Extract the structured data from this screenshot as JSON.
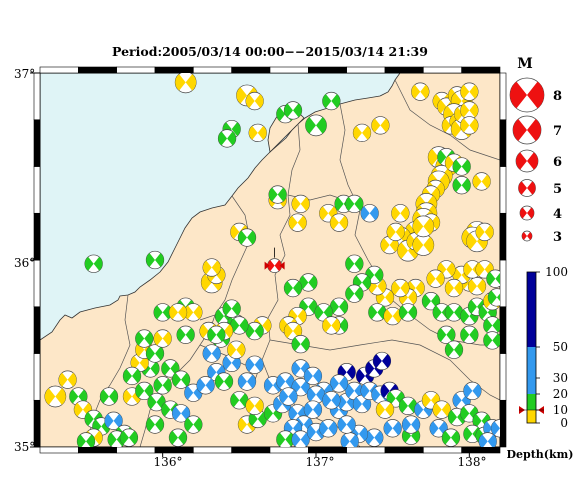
{
  "title": "Period:2005/03/14 00:00−−2015/03/14 21:39",
  "axes": {
    "lat_labels": [
      "37°",
      "36°",
      "35°"
    ],
    "lon_labels": [
      "136°",
      "137°",
      "138°"
    ]
  },
  "magnitude_legend": {
    "title": "M",
    "labels": [
      "8",
      "7",
      "6",
      "5",
      "4",
      "3"
    ]
  },
  "depth_legend": {
    "title": "Depth(km)",
    "tick_labels": [
      "100",
      "50",
      "30",
      "20",
      "10",
      "0"
    ],
    "colors": {
      "shallow": "#ffd700",
      "mid": "#22cc22",
      "deep": "#3399ee",
      "deepest": "#000099"
    }
  },
  "colors": {
    "sea": "#dff4f6",
    "land": "#fde7c8",
    "border": "#555555",
    "main_event": "#ee1111"
  },
  "chart_data": {
    "type": "scatter",
    "xlim": [
      135.2,
      138.2
    ],
    "ylim": [
      35.0,
      37.0
    ],
    "main_event": {
      "lon": 136.73,
      "lat": 35.97,
      "mag": 4.5,
      "depth_km": 10
    },
    "events": [
      [
        135.3,
        35.27,
        5,
        8
      ],
      [
        135.38,
        35.36,
        4,
        6
      ],
      [
        135.45,
        35.27,
        4,
        20
      ],
      [
        135.48,
        35.2,
        4,
        5
      ],
      [
        135.55,
        35.15,
        4,
        18
      ],
      [
        135.6,
        35.11,
        4,
        15
      ],
      [
        135.68,
        35.14,
        4,
        25
      ],
      [
        135.75,
        35.07,
        4,
        14
      ],
      [
        135.7,
        35.04,
        4,
        18
      ],
      [
        135.78,
        35.05,
        4,
        12
      ],
      [
        135.55,
        35.05,
        4,
        10
      ],
      [
        135.5,
        35.03,
        4,
        15
      ],
      [
        135.65,
        35.27,
        4,
        15
      ],
      [
        135.8,
        35.27,
        4,
        10
      ],
      [
        135.88,
        35.3,
        4,
        16
      ],
      [
        135.96,
        35.24,
        4,
        14
      ],
      [
        135.95,
        35.12,
        4,
        14
      ],
      [
        136.05,
        35.2,
        4,
        12
      ],
      [
        136.0,
        35.33,
        4,
        20
      ],
      [
        135.92,
        35.42,
        4,
        18
      ],
      [
        135.85,
        35.45,
        4,
        8
      ],
      [
        135.8,
        35.38,
        4,
        20
      ],
      [
        135.88,
        35.52,
        4,
        10
      ],
      [
        135.95,
        35.5,
        4,
        16
      ],
      [
        136.05,
        35.42,
        4,
        18
      ],
      [
        136.12,
        35.36,
        4,
        20
      ],
      [
        136.2,
        35.29,
        4,
        35
      ],
      [
        136.12,
        35.18,
        4,
        22
      ],
      [
        136.2,
        35.12,
        4,
        14
      ],
      [
        136.1,
        35.05,
        4,
        18
      ],
      [
        135.88,
        35.58,
        4,
        15
      ],
      [
        136.0,
        35.58,
        4,
        10
      ],
      [
        136.15,
        35.6,
        4,
        15
      ],
      [
        136.0,
        35.72,
        4,
        18
      ],
      [
        136.15,
        35.75,
        4,
        20
      ],
      [
        136.3,
        35.62,
        4,
        15
      ],
      [
        136.4,
        35.7,
        4,
        15
      ],
      [
        136.48,
        35.66,
        4,
        12
      ],
      [
        136.45,
        35.74,
        4,
        16
      ],
      [
        136.38,
        35.58,
        4,
        20
      ],
      [
        136.45,
        35.45,
        4,
        30
      ],
      [
        136.35,
        35.4,
        4,
        32
      ],
      [
        136.32,
        35.5,
        4,
        30
      ],
      [
        136.28,
        35.33,
        4,
        28
      ],
      [
        136.4,
        35.35,
        4,
        15
      ],
      [
        136.55,
        35.35,
        4,
        30
      ],
      [
        136.6,
        35.44,
        4,
        35
      ],
      [
        136.5,
        35.25,
        4,
        14
      ],
      [
        136.55,
        35.12,
        4,
        10
      ],
      [
        136.62,
        35.15,
        4,
        15
      ],
      [
        136.6,
        35.22,
        4,
        8
      ],
      [
        136.72,
        35.18,
        4,
        18
      ],
      [
        136.78,
        35.23,
        4,
        30
      ],
      [
        136.72,
        35.33,
        4,
        30
      ],
      [
        136.8,
        35.35,
        4,
        25
      ],
      [
        136.9,
        35.32,
        4,
        30
      ],
      [
        136.82,
        35.27,
        4,
        30
      ],
      [
        136.88,
        35.18,
        4,
        30
      ],
      [
        136.92,
        35.12,
        4,
        30
      ],
      [
        136.85,
        35.1,
        4,
        35
      ],
      [
        136.8,
        35.04,
        4,
        20
      ],
      [
        136.9,
        35.04,
        4,
        35
      ],
      [
        137.0,
        35.08,
        4,
        30
      ],
      [
        137.08,
        35.1,
        4,
        40
      ],
      [
        137.15,
        35.2,
        4,
        35
      ],
      [
        137.2,
        35.24,
        4,
        35
      ],
      [
        137.25,
        35.3,
        4,
        40
      ],
      [
        137.32,
        35.38,
        4,
        60
      ],
      [
        137.38,
        35.42,
        4,
        70
      ],
      [
        137.43,
        35.46,
        4,
        75
      ],
      [
        137.2,
        35.4,
        4,
        70
      ],
      [
        137.15,
        35.34,
        4,
        30
      ],
      [
        137.05,
        35.3,
        4,
        30
      ],
      [
        137.0,
        35.28,
        4,
        30
      ],
      [
        137.1,
        35.25,
        4,
        35
      ],
      [
        136.98,
        35.2,
        4,
        30
      ],
      [
        136.9,
        35.42,
        4,
        25
      ],
      [
        136.98,
        35.38,
        4,
        30
      ],
      [
        137.3,
        35.23,
        4,
        35
      ],
      [
        137.35,
        35.3,
        4,
        30
      ],
      [
        137.42,
        35.28,
        4,
        40
      ],
      [
        137.48,
        35.3,
        4,
        90
      ],
      [
        137.52,
        35.26,
        4,
        15
      ],
      [
        137.45,
        35.2,
        4,
        10
      ],
      [
        137.5,
        35.1,
        4,
        35
      ],
      [
        137.38,
        35.05,
        4,
        30
      ],
      [
        137.28,
        35.07,
        4,
        30
      ],
      [
        137.22,
        35.03,
        4,
        32
      ],
      [
        137.2,
        35.12,
        4,
        35
      ],
      [
        137.6,
        35.22,
        4,
        20
      ],
      [
        137.7,
        35.2,
        4,
        25
      ],
      [
        137.75,
        35.25,
        4,
        5
      ],
      [
        137.82,
        35.2,
        4,
        10
      ],
      [
        137.8,
        35.1,
        4,
        25
      ],
      [
        137.92,
        35.16,
        4,
        20
      ],
      [
        137.95,
        35.25,
        4,
        30
      ],
      [
        138.02,
        35.3,
        4,
        30
      ],
      [
        138.0,
        35.18,
        4,
        20
      ],
      [
        138.08,
        35.14,
        4,
        20
      ],
      [
        138.02,
        35.07,
        4,
        15
      ],
      [
        138.1,
        35.06,
        4,
        18
      ],
      [
        138.15,
        35.1,
        4,
        22
      ],
      [
        137.88,
        35.05,
        4,
        15
      ],
      [
        137.62,
        35.06,
        4,
        15
      ],
      [
        137.62,
        35.12,
        4,
        30
      ],
      [
        138.2,
        35.1,
        4,
        40
      ],
      [
        138.12,
        35.03,
        4,
        30
      ],
      [
        136.15,
        36.95,
        5,
        8
      ],
      [
        136.55,
        36.88,
        5,
        3
      ],
      [
        136.6,
        36.85,
        4,
        3
      ],
      [
        136.8,
        36.78,
        4,
        15
      ],
      [
        136.85,
        36.8,
        4,
        12
      ],
      [
        136.45,
        36.7,
        4,
        20
      ],
      [
        136.42,
        36.65,
        4,
        20
      ],
      [
        136.62,
        36.68,
        4,
        10
      ],
      [
        137.0,
        36.72,
        5,
        14
      ],
      [
        137.1,
        36.85,
        4,
        14
      ],
      [
        137.3,
        36.68,
        4,
        10
      ],
      [
        137.42,
        36.72,
        4,
        10
      ],
      [
        137.68,
        36.9,
        4,
        8
      ],
      [
        137.82,
        36.85,
        4,
        8
      ],
      [
        137.85,
        36.82,
        4,
        10
      ],
      [
        137.92,
        36.88,
        4,
        8
      ],
      [
        137.95,
        36.85,
        5,
        5
      ],
      [
        138.0,
        36.9,
        4,
        8
      ],
      [
        137.9,
        36.78,
        5,
        10
      ],
      [
        137.88,
        36.72,
        4,
        5
      ],
      [
        137.93,
        36.74,
        4,
        8
      ],
      [
        137.95,
        36.7,
        5,
        5
      ],
      [
        137.96,
        36.78,
        4,
        8
      ],
      [
        138.0,
        36.8,
        4,
        5
      ],
      [
        138.0,
        36.72,
        4,
        5
      ],
      [
        137.8,
        36.55,
        5,
        5
      ],
      [
        137.85,
        36.5,
        5,
        5
      ],
      [
        137.82,
        36.45,
        5,
        10
      ],
      [
        137.8,
        36.42,
        5,
        5
      ],
      [
        137.78,
        36.38,
        4,
        8
      ],
      [
        137.75,
        36.35,
        4,
        5
      ],
      [
        137.72,
        36.3,
        5,
        5
      ],
      [
        137.72,
        36.25,
        5,
        5
      ],
      [
        137.7,
        36.22,
        5,
        5
      ],
      [
        137.75,
        36.2,
        4,
        5
      ],
      [
        137.65,
        36.15,
        5,
        5
      ],
      [
        137.55,
        36.12,
        5,
        5
      ],
      [
        137.48,
        36.08,
        4,
        5
      ],
      [
        137.52,
        36.15,
        4,
        5
      ],
      [
        137.6,
        36.05,
        5,
        5
      ],
      [
        137.65,
        36.1,
        4,
        5
      ],
      [
        137.7,
        36.08,
        5,
        5
      ],
      [
        137.85,
        36.55,
        4,
        15
      ],
      [
        137.9,
        36.52,
        4,
        5
      ],
      [
        137.95,
        36.5,
        4,
        20
      ],
      [
        137.95,
        36.4,
        4,
        15
      ],
      [
        138.08,
        36.42,
        4,
        5
      ],
      [
        138.05,
        36.15,
        5,
        5
      ],
      [
        138.02,
        36.12,
        5,
        5
      ],
      [
        138.05,
        36.1,
        5,
        5
      ],
      [
        138.1,
        36.15,
        4,
        5
      ],
      [
        138.0,
        35.88,
        4,
        5
      ],
      [
        137.95,
        35.92,
        4,
        5
      ],
      [
        138.05,
        35.86,
        4,
        5
      ],
      [
        138.02,
        35.95,
        4,
        5
      ],
      [
        138.1,
        35.95,
        4,
        5
      ],
      [
        137.9,
        35.85,
        4,
        10
      ],
      [
        137.85,
        35.95,
        4,
        10
      ],
      [
        137.78,
        35.9,
        4,
        10
      ],
      [
        137.65,
        35.85,
        4,
        10
      ],
      [
        137.6,
        35.8,
        4,
        10
      ],
      [
        137.55,
        35.85,
        4,
        10
      ],
      [
        137.45,
        35.8,
        4,
        10
      ],
      [
        137.4,
        35.86,
        4,
        10
      ],
      [
        137.38,
        35.92,
        4,
        20
      ],
      [
        137.25,
        35.98,
        4,
        15
      ],
      [
        137.3,
        35.88,
        4,
        15
      ],
      [
        137.25,
        35.82,
        4,
        20
      ],
      [
        137.15,
        35.75,
        4,
        15
      ],
      [
        137.15,
        35.65,
        4,
        20
      ],
      [
        137.4,
        35.72,
        4,
        20
      ],
      [
        137.5,
        35.7,
        4,
        10
      ],
      [
        137.6,
        35.72,
        4,
        20
      ],
      [
        137.75,
        35.78,
        4,
        15
      ],
      [
        137.82,
        35.72,
        4,
        20
      ],
      [
        137.9,
        35.72,
        4,
        20
      ],
      [
        138.0,
        35.7,
        4,
        20
      ],
      [
        138.05,
        35.75,
        4,
        18
      ],
      [
        138.12,
        35.72,
        4,
        20
      ],
      [
        138.15,
        35.65,
        4,
        20
      ],
      [
        138.15,
        35.78,
        4,
        10
      ],
      [
        138.18,
        35.8,
        4,
        20
      ],
      [
        138.17,
        35.9,
        4,
        20
      ],
      [
        138.0,
        35.6,
        4,
        20
      ],
      [
        137.85,
        35.6,
        4,
        20
      ],
      [
        137.9,
        35.52,
        4,
        20
      ],
      [
        138.15,
        35.57,
        4,
        20
      ],
      [
        136.95,
        35.88,
        4,
        15
      ],
      [
        136.85,
        35.85,
        4,
        20
      ],
      [
        136.95,
        35.75,
        4,
        18
      ],
      [
        136.88,
        35.7,
        4,
        10
      ],
      [
        137.05,
        35.72,
        4,
        20
      ],
      [
        137.1,
        35.65,
        4,
        5
      ],
      [
        136.82,
        35.65,
        4,
        10
      ],
      [
        136.85,
        35.62,
        4,
        10
      ],
      [
        136.9,
        35.55,
        4,
        20
      ],
      [
        136.65,
        35.65,
        4,
        5
      ],
      [
        136.6,
        35.62,
        4,
        15
      ],
      [
        136.5,
        35.65,
        4,
        15
      ],
      [
        136.48,
        35.52,
        4,
        10
      ],
      [
        136.3,
        35.62,
        4,
        5
      ],
      [
        136.4,
        35.62,
        4,
        10
      ],
      [
        136.35,
        35.6,
        4,
        15
      ],
      [
        136.2,
        35.72,
        4,
        5
      ],
      [
        136.1,
        35.72,
        4,
        5
      ],
      [
        136.32,
        35.88,
        5,
        5
      ],
      [
        136.35,
        35.92,
        4,
        10
      ],
      [
        136.32,
        35.96,
        4,
        5
      ],
      [
        136.5,
        36.15,
        4,
        5
      ],
      [
        136.55,
        36.12,
        4,
        20
      ],
      [
        136.75,
        36.32,
        4,
        5
      ],
      [
        136.75,
        36.35,
        4,
        15
      ],
      [
        136.88,
        36.2,
        4,
        5
      ],
      [
        136.9,
        36.3,
        4,
        5
      ],
      [
        137.08,
        36.25,
        4,
        5
      ],
      [
        137.18,
        36.3,
        4,
        20
      ],
      [
        137.25,
        36.3,
        4,
        20
      ],
      [
        137.35,
        36.25,
        4,
        25
      ],
      [
        137.15,
        36.2,
        4,
        5
      ],
      [
        135.95,
        36.0,
        4,
        20
      ],
      [
        135.55,
        35.98,
        4,
        20
      ],
      [
        137.55,
        36.25,
        4,
        5
      ],
      [
        137.7,
        36.18,
        5,
        5
      ]
    ]
  }
}
